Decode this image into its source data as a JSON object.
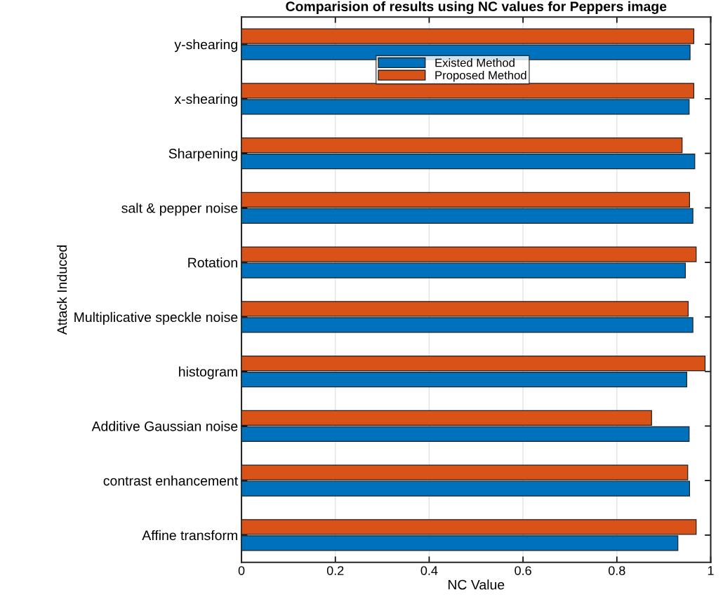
{
  "chart_data": {
    "type": "bar",
    "orientation": "horizontal",
    "title": "Comparision of results using NC values for Peppers image",
    "xlabel": "NC Value",
    "ylabel": "Attack Induced",
    "categories": [
      "y-shearing",
      "x-shearing",
      "Sharpening",
      "salt & pepper noise",
      "Rotation",
      "Multiplicative speckle noise",
      "histogram",
      "Additive Gaussian noise",
      "contrast enhancement",
      "Affine transform"
    ],
    "series": [
      {
        "name": "Existed Method",
        "color": "#0072bd",
        "values": [
          0.956,
          0.954,
          0.966,
          0.962,
          0.946,
          0.962,
          0.949,
          0.954,
          0.955,
          0.93
        ]
      },
      {
        "name": "Proposed Method",
        "color": "#d95319",
        "values": [
          0.964,
          0.964,
          0.939,
          0.955,
          0.969,
          0.952,
          0.988,
          0.874,
          0.951,
          0.969
        ]
      }
    ],
    "xlim": [
      0,
      1
    ],
    "xticks": [
      0,
      0.2,
      0.4,
      0.6,
      0.8,
      1
    ],
    "grid": "x",
    "legend": "top"
  }
}
